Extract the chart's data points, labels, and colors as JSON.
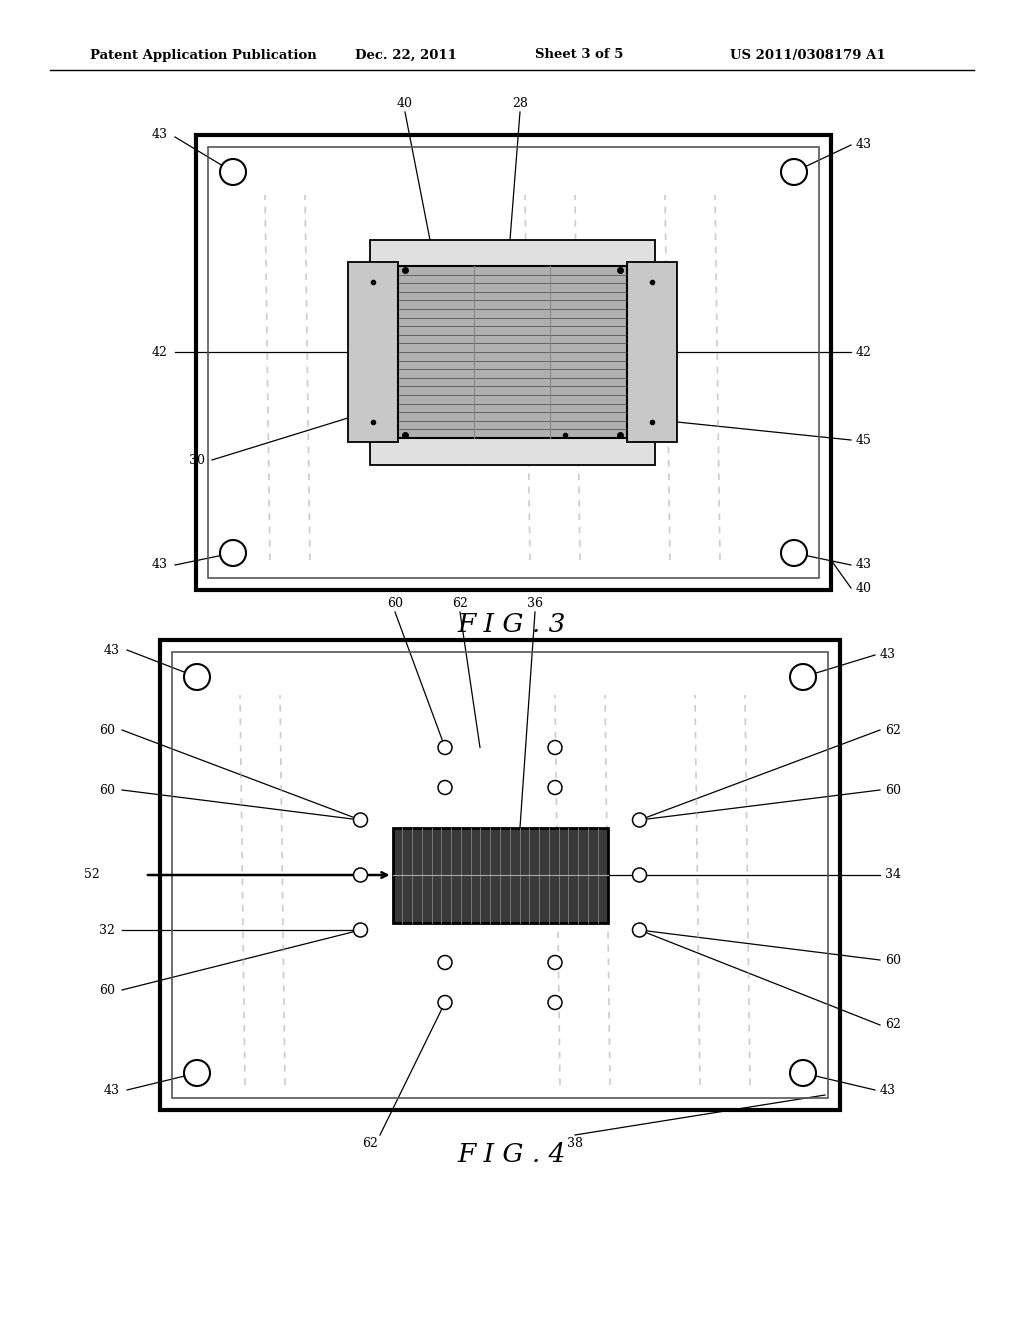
{
  "bg_color": "#ffffff",
  "line_color": "#000000",
  "header_text": "Patent Application Publication",
  "header_date": "Dec. 22, 2011",
  "header_sheet": "Sheet 3 of 5",
  "header_patent": "US 2011/0308179 A1",
  "fig3_label": "F I G . 3",
  "fig4_label": "F I G . 4"
}
